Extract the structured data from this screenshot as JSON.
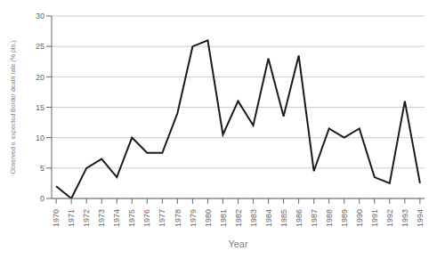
{
  "chart_data": {
    "type": "line",
    "x": [
      1970,
      1971,
      1972,
      1973,
      1974,
      1975,
      1976,
      1977,
      1978,
      1979,
      1980,
      1981,
      1982,
      1983,
      1984,
      1985,
      1986,
      1987,
      1988,
      1989,
      1990,
      1991,
      1992,
      1993,
      1994
    ],
    "values": [
      2,
      0,
      5,
      6.5,
      3.5,
      10,
      7.5,
      7.5,
      14,
      25,
      26,
      10.5,
      16,
      12,
      23,
      13.5,
      23.5,
      4.5,
      11.5,
      10,
      11.5,
      3.5,
      2.5,
      16,
      2.5
    ],
    "xlabel": "Year",
    "ylabel": "Observed v. expected Border death rate (% pts.)",
    "color": "#1a1a1a",
    "xlim": [
      1969.7,
      1994.3
    ],
    "xticks": [
      1970,
      1971,
      1972,
      1973,
      1974,
      1975,
      1976,
      1977,
      1978,
      1979,
      1980,
      1981,
      1982,
      1983,
      1984,
      1985,
      1986,
      1987,
      1988,
      1989,
      1990,
      1991,
      1992,
      1993,
      1994
    ],
    "ylim": [
      0,
      30
    ],
    "yticks": [
      0,
      5,
      10,
      15,
      20,
      25,
      30
    ],
    "grid": true
  }
}
